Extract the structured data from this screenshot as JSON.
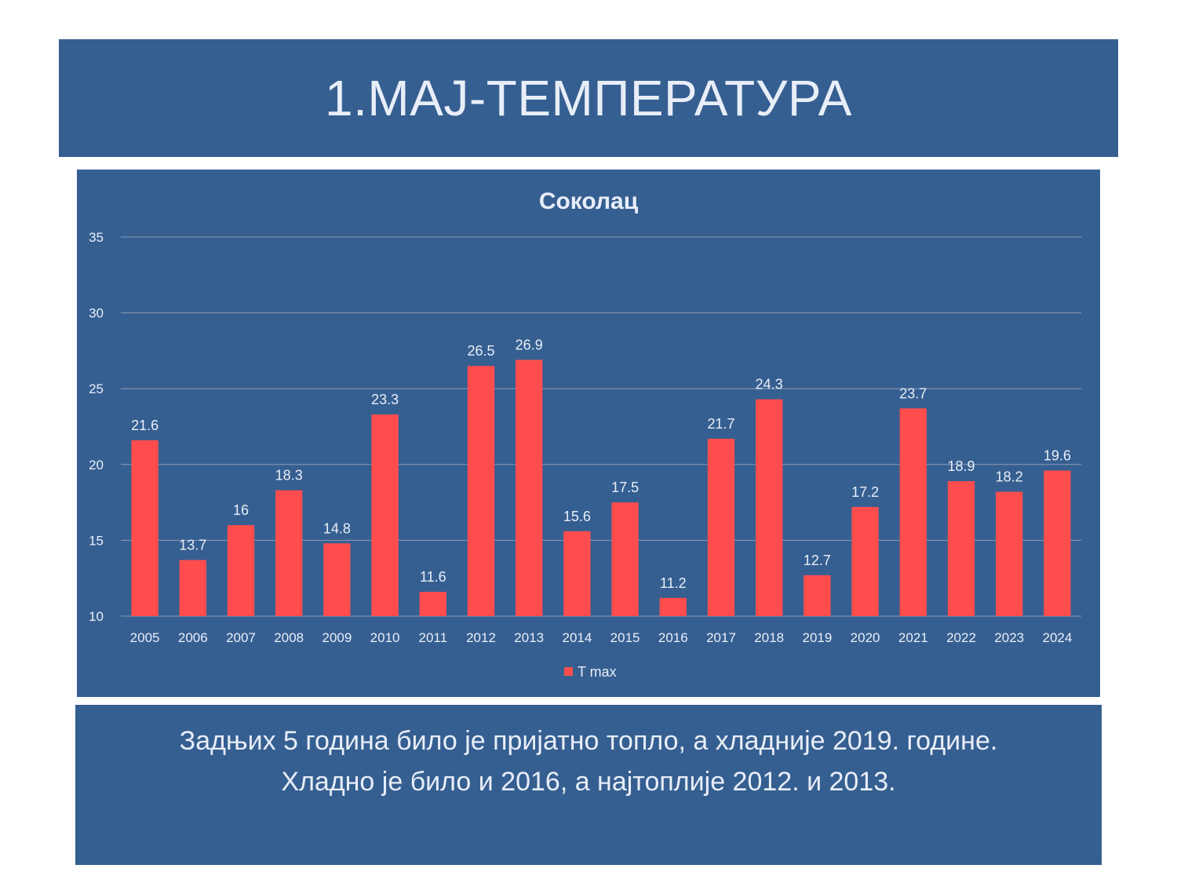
{
  "slide": {
    "title": "1.МАЈ-ТЕМПЕРАТУРА",
    "caption_line1": "Задњих 5 година било је пријатно топло, а хладније 2019. године.",
    "caption_line2": "Хладно је било и 2016, а најтоплије 2012. и 2013."
  },
  "colors": {
    "background": "#365f91",
    "bar": "#ff4d4d",
    "text": "#e8eef8",
    "grid": "#8a9bb5"
  },
  "chart_data": {
    "type": "bar",
    "title": "Соколац",
    "categories": [
      "2005",
      "2006",
      "2007",
      "2008",
      "2009",
      "2010",
      "2011",
      "2012",
      "2013",
      "2014",
      "2015",
      "2016",
      "2017",
      "2018",
      "2019",
      "2020",
      "2021",
      "2022",
      "2023",
      "2024"
    ],
    "series": [
      {
        "name": "T max",
        "values": [
          21.6,
          13.7,
          16,
          18.3,
          14.8,
          23.3,
          11.6,
          26.5,
          26.9,
          15.6,
          17.5,
          11.2,
          21.7,
          24.3,
          12.7,
          17.2,
          23.7,
          18.9,
          18.2,
          19.6
        ]
      }
    ],
    "ylim": [
      10,
      35
    ],
    "yticks": [
      10,
      15,
      20,
      25,
      30,
      35
    ],
    "grid": true,
    "legend": "bottom"
  }
}
